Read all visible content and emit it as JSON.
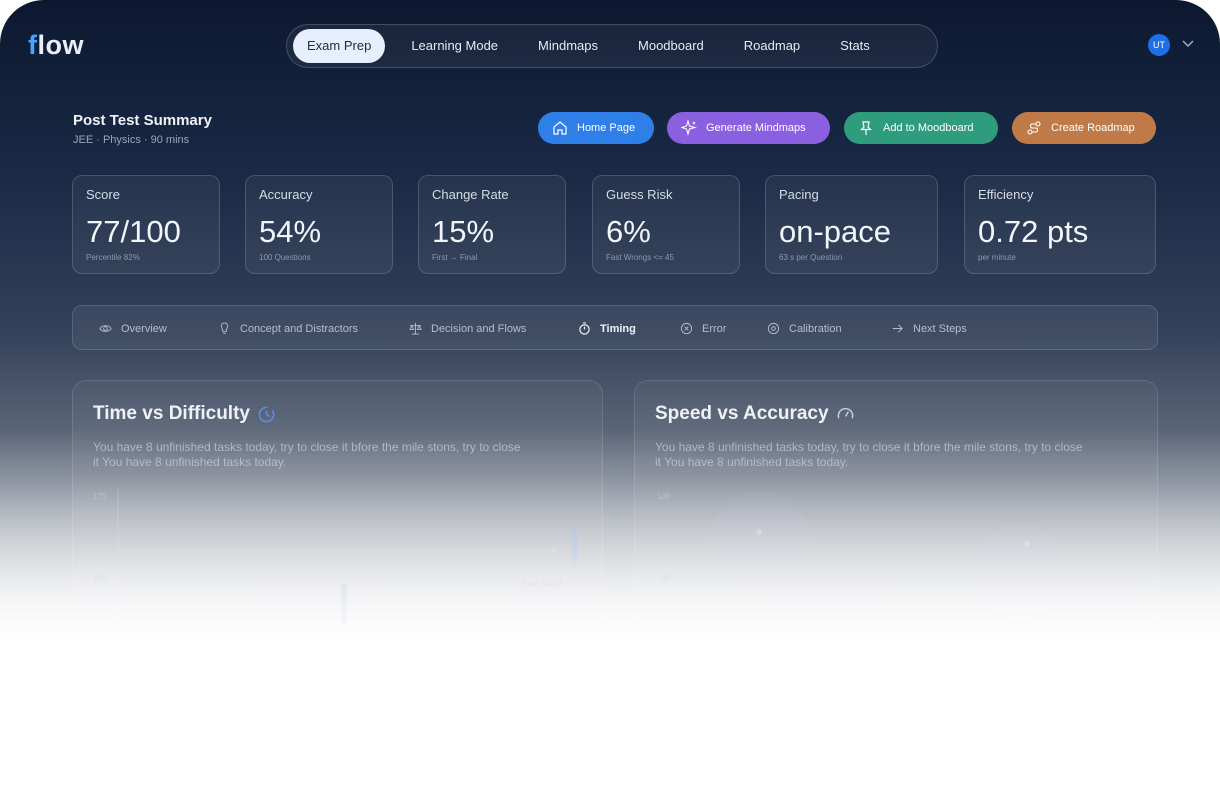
{
  "app": {
    "logo": "flow"
  },
  "nav": {
    "tabs": [
      "Exam Prep",
      "Learning Mode",
      "Mindmaps",
      "Moodboard",
      "Roadmap",
      "Stats"
    ],
    "active": 0,
    "user_initials": "UT"
  },
  "header": {
    "title": "Post Test Summary",
    "subtitle": "JEE · Physics · 90 mins",
    "actions": [
      {
        "label": "Home Page",
        "color": "#2f7fe8",
        "icon": "home-icon"
      },
      {
        "label": "Generate Mindmaps",
        "color": "#8a5fe0",
        "icon": "sparkle-icon"
      },
      {
        "label": "Add to Moodboard",
        "color": "#2f9c7e",
        "icon": "pin-icon"
      },
      {
        "label": "Create Roadmap",
        "color": "#c07a47",
        "icon": "roadmap-icon"
      }
    ]
  },
  "stats": [
    {
      "label": "Score",
      "value": "77/100",
      "sub": "Percentile 82%"
    },
    {
      "label": "Accuracy",
      "value": "54%",
      "sub": "100 Questions"
    },
    {
      "label": "Change Rate",
      "value": "15%",
      "sub": "First → Final"
    },
    {
      "label": "Guess Risk",
      "value": "6%",
      "sub": "Fast Wrongs <= 45"
    },
    {
      "label": "Pacing",
      "value": "on-pace",
      "sub": "63 s per Question"
    },
    {
      "label": "Efficiency",
      "value": "0.72 pts",
      "sub": "per minute"
    }
  ],
  "section_tabs": {
    "items": [
      {
        "label": "Overview",
        "icon": "eye-icon"
      },
      {
        "label": "Concept and Distractors",
        "icon": "bulb-icon"
      },
      {
        "label": "Decision and Flows",
        "icon": "scale-icon"
      },
      {
        "label": "Timing",
        "icon": "stopwatch-icon"
      },
      {
        "label": "Error",
        "icon": "error-icon"
      },
      {
        "label": "Calibration",
        "icon": "target-icon"
      },
      {
        "label": "Next Steps",
        "icon": "arrow-right-icon"
      }
    ],
    "active": 3
  },
  "panels": {
    "time_vs_difficulty": {
      "title": "Time vs Difficulty",
      "description": "You have 8 unfinished tasks today, try to close it bfore the mile stons, try to close it You have 8 unfinished tasks today.",
      "ticks": [
        "175",
        "140",
        "105"
      ],
      "note": "Time Spent"
    },
    "speed_vs_accuracy": {
      "title": "Speed vs Accuracy",
      "description": "You have 8 unfinished tasks today, try to close it bfore the mile stons, try to close it You have 8 unfinished tasks today.",
      "ticks": [
        "100",
        "75",
        "50"
      ]
    }
  }
}
